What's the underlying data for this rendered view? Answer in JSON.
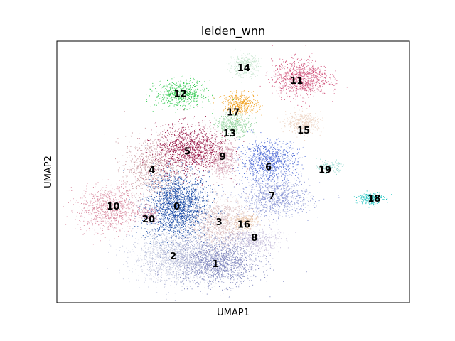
{
  "chart_data": {
    "type": "scatter",
    "title": "leiden_wnn",
    "xlabel": "UMAP1",
    "ylabel": "UMAP2",
    "grid": false,
    "legend": "on data",
    "ticks": "none",
    "clusters": [
      {
        "label": "0",
        "color": "#1f4ea8",
        "cx": 0.34,
        "cy": 0.37,
        "rx": 0.09,
        "ry": 0.13,
        "n": 2200
      },
      {
        "label": "1",
        "color": "#7f86bd",
        "cx": 0.45,
        "cy": 0.16,
        "rx": 0.12,
        "ry": 0.09,
        "n": 1800
      },
      {
        "label": "2",
        "color": "#c2c7de",
        "cx": 0.33,
        "cy": 0.18,
        "rx": 0.12,
        "ry": 0.1,
        "n": 1500
      },
      {
        "label": "3",
        "color": "#dcc0c2",
        "cx": 0.46,
        "cy": 0.31,
        "rx": 0.08,
        "ry": 0.09,
        "n": 1000
      },
      {
        "label": "4",
        "color": "#c99aa0",
        "cx": 0.27,
        "cy": 0.52,
        "rx": 0.08,
        "ry": 0.12,
        "n": 900
      },
      {
        "label": "5",
        "color": "#9b1b4a",
        "cx": 0.38,
        "cy": 0.59,
        "rx": 0.1,
        "ry": 0.09,
        "n": 1300
      },
      {
        "label": "6",
        "color": "#4f6cd6",
        "cx": 0.6,
        "cy": 0.54,
        "rx": 0.08,
        "ry": 0.08,
        "n": 1000
      },
      {
        "label": "7",
        "color": "#8e99d6",
        "cx": 0.62,
        "cy": 0.4,
        "rx": 0.1,
        "ry": 0.07,
        "n": 900
      },
      {
        "label": "8",
        "color": "#c9c0dd",
        "cx": 0.56,
        "cy": 0.24,
        "rx": 0.07,
        "ry": 0.05,
        "n": 500
      },
      {
        "label": "9",
        "color": "#d8a8b8",
        "cx": 0.47,
        "cy": 0.55,
        "rx": 0.04,
        "ry": 0.07,
        "n": 500
      },
      {
        "label": "10",
        "color": "#d98aa0",
        "cx": 0.15,
        "cy": 0.36,
        "rx": 0.09,
        "ry": 0.09,
        "n": 900
      },
      {
        "label": "11",
        "color": "#d0517a",
        "cx": 0.69,
        "cy": 0.86,
        "rx": 0.08,
        "ry": 0.07,
        "n": 900
      },
      {
        "label": "12",
        "color": "#2fc94e",
        "cx": 0.35,
        "cy": 0.8,
        "rx": 0.07,
        "ry": 0.05,
        "n": 600
      },
      {
        "label": "13",
        "color": "#93d49e",
        "cx": 0.5,
        "cy": 0.68,
        "rx": 0.05,
        "ry": 0.04,
        "n": 400
      },
      {
        "label": "14",
        "color": "#c7e6cf",
        "cx": 0.53,
        "cy": 0.91,
        "rx": 0.04,
        "ry": 0.04,
        "n": 350
      },
      {
        "label": "15",
        "color": "#edd4c4",
        "cx": 0.7,
        "cy": 0.69,
        "rx": 0.05,
        "ry": 0.04,
        "n": 400
      },
      {
        "label": "16",
        "color": "#e8c2a4",
        "cx": 0.53,
        "cy": 0.31,
        "rx": 0.04,
        "ry": 0.03,
        "n": 250
      },
      {
        "label": "17",
        "color": "#f0a020",
        "cx": 0.52,
        "cy": 0.76,
        "rx": 0.05,
        "ry": 0.04,
        "n": 450
      },
      {
        "label": "18",
        "color": "#18c2bf",
        "cx": 0.89,
        "cy": 0.4,
        "rx": 0.035,
        "ry": 0.025,
        "n": 250
      },
      {
        "label": "19",
        "color": "#8fd8cc",
        "cx": 0.77,
        "cy": 0.52,
        "rx": 0.03,
        "ry": 0.02,
        "n": 150
      },
      {
        "label": "20",
        "color": "#cf8fa8",
        "cx": 0.26,
        "cy": 0.34,
        "rx": 0.03,
        "ry": 0.03,
        "n": 150
      }
    ],
    "labels": [
      {
        "text": "0",
        "x": 0.34,
        "y": 0.37
      },
      {
        "text": "1",
        "x": 0.45,
        "y": 0.15
      },
      {
        "text": "2",
        "x": 0.33,
        "y": 0.18
      },
      {
        "text": "3",
        "x": 0.46,
        "y": 0.31
      },
      {
        "text": "4",
        "x": 0.27,
        "y": 0.51
      },
      {
        "text": "5",
        "x": 0.37,
        "y": 0.58
      },
      {
        "text": "6",
        "x": 0.6,
        "y": 0.52
      },
      {
        "text": "7",
        "x": 0.61,
        "y": 0.41
      },
      {
        "text": "8",
        "x": 0.56,
        "y": 0.25
      },
      {
        "text": "9",
        "x": 0.47,
        "y": 0.56
      },
      {
        "text": "10",
        "x": 0.16,
        "y": 0.37
      },
      {
        "text": "11",
        "x": 0.68,
        "y": 0.85
      },
      {
        "text": "12",
        "x": 0.35,
        "y": 0.8
      },
      {
        "text": "13",
        "x": 0.49,
        "y": 0.65
      },
      {
        "text": "14",
        "x": 0.53,
        "y": 0.9
      },
      {
        "text": "15",
        "x": 0.7,
        "y": 0.66
      },
      {
        "text": "16",
        "x": 0.53,
        "y": 0.3
      },
      {
        "text": "17",
        "x": 0.5,
        "y": 0.73
      },
      {
        "text": "18",
        "x": 0.9,
        "y": 0.4
      },
      {
        "text": "19",
        "x": 0.76,
        "y": 0.51
      },
      {
        "text": "20",
        "x": 0.26,
        "y": 0.32
      }
    ]
  }
}
